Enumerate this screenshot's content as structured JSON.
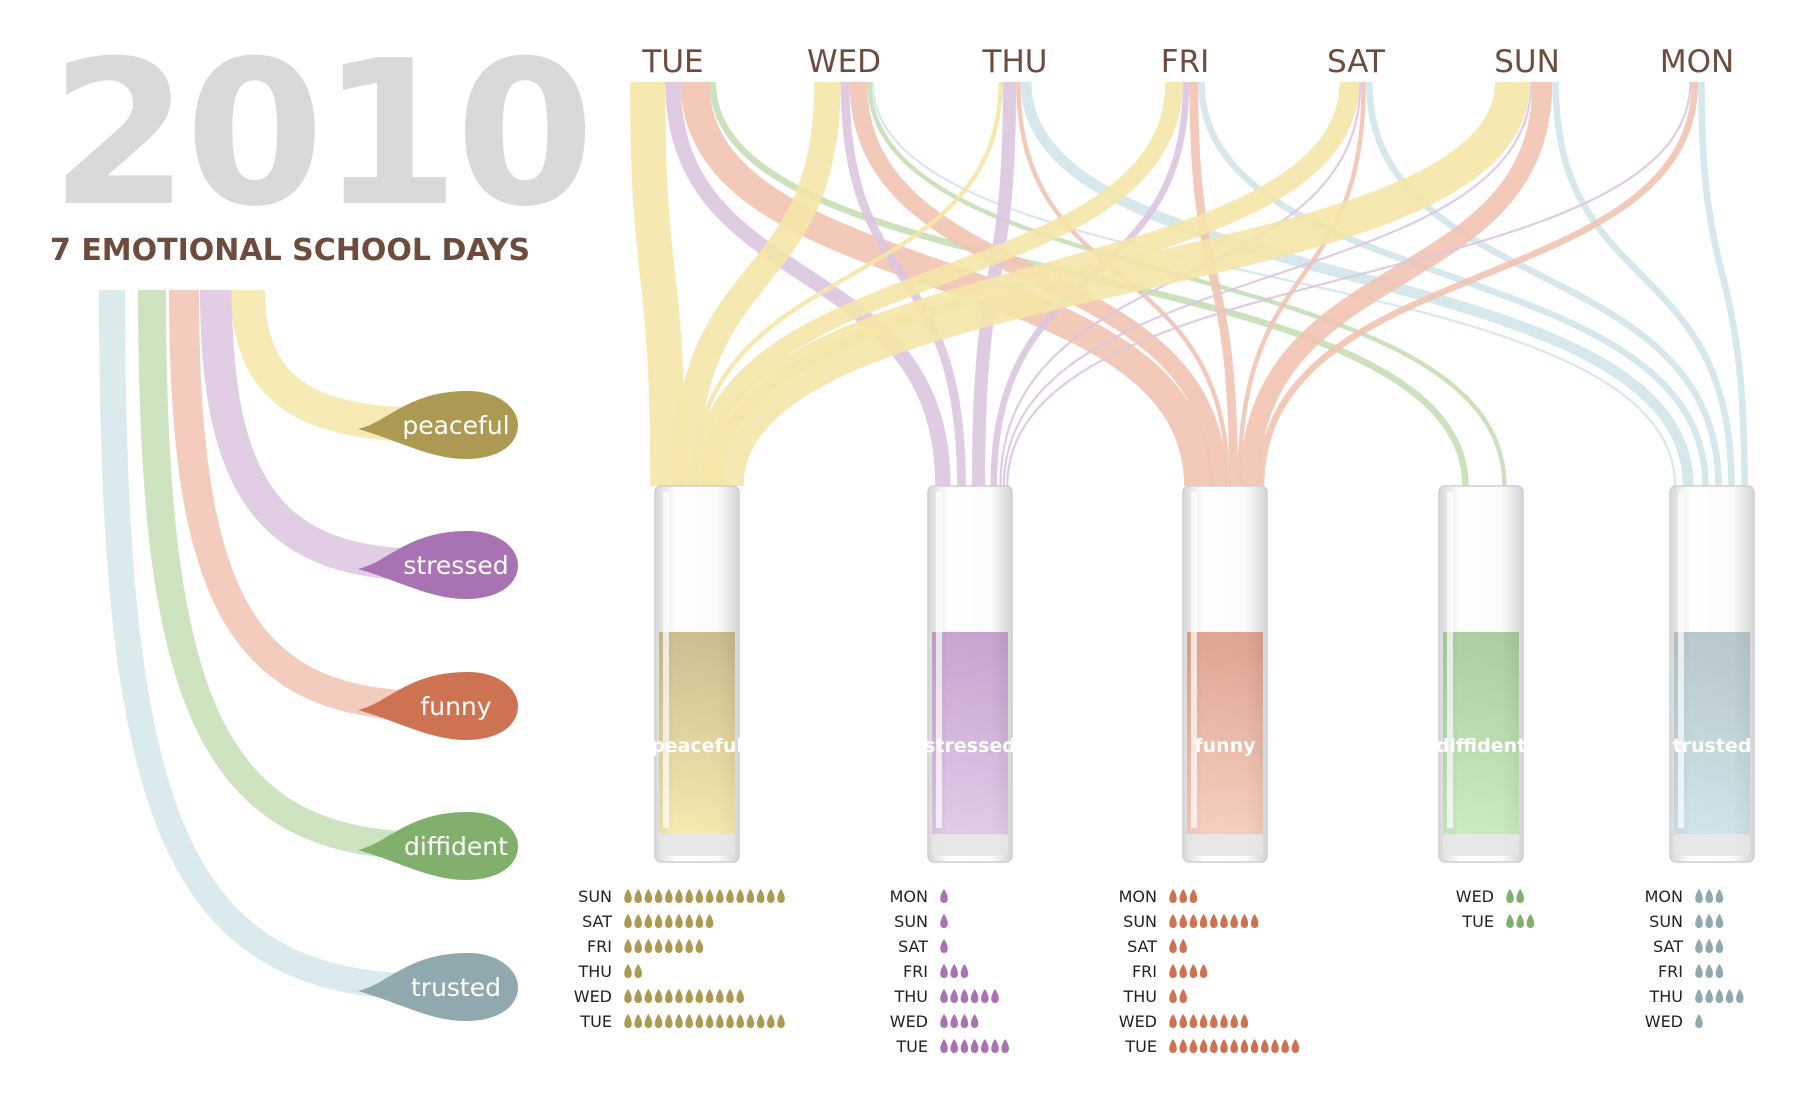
{
  "header": {
    "year": "2010",
    "subtitle": "7 EMOTIONAL SCHOOL DAYS"
  },
  "days": [
    "TUE",
    "WED",
    "THU",
    "FRI",
    "SAT",
    "SUN",
    "MON"
  ],
  "emotions": [
    {
      "key": "peaceful",
      "label": "peaceful",
      "glass_label": "peaceful",
      "color": "#ad9a52",
      "light": "#f1e08a",
      "ribbon": "#f5e6a8"
    },
    {
      "key": "stressed",
      "label": "stressed",
      "glass_label": "stressed",
      "color": "#a872b3",
      "light": "#d2b3dd",
      "ribbon": "#dcc6e0"
    },
    {
      "key": "funny",
      "label": "funny",
      "glass_label": "funny",
      "color": "#cd7352",
      "light": "#f2b9a3",
      "ribbon": "#f2c3b3"
    },
    {
      "key": "diffident",
      "label": "diffident",
      "glass_label": "diffident",
      "color": "#80b06c",
      "light": "#b2e2a2",
      "ribbon": "#c5dfb6"
    },
    {
      "key": "trusted",
      "label": "trusted",
      "glass_label": "trusted",
      "color": "#90a9ae",
      "light": "#b9d8e0",
      "ribbon": "#d3e6ea"
    }
  ],
  "chart_data": {
    "type": "table",
    "counts": {
      "peaceful": [
        {
          "day": "SUN",
          "count": 16
        },
        {
          "day": "SAT",
          "count": 9
        },
        {
          "day": "FRI",
          "count": 8
        },
        {
          "day": "THU",
          "count": 2
        },
        {
          "day": "WED",
          "count": 12
        },
        {
          "day": "TUE",
          "count": 16
        }
      ],
      "stressed": [
        {
          "day": "MON",
          "count": 1
        },
        {
          "day": "SUN",
          "count": 1
        },
        {
          "day": "SAT",
          "count": 1
        },
        {
          "day": "FRI",
          "count": 3
        },
        {
          "day": "THU",
          "count": 6
        },
        {
          "day": "WED",
          "count": 4
        },
        {
          "day": "TUE",
          "count": 7
        }
      ],
      "funny": [
        {
          "day": "MON",
          "count": 3
        },
        {
          "day": "SUN",
          "count": 9
        },
        {
          "day": "SAT",
          "count": 2
        },
        {
          "day": "FRI",
          "count": 4
        },
        {
          "day": "THU",
          "count": 2
        },
        {
          "day": "WED",
          "count": 8
        },
        {
          "day": "TUE",
          "count": 13
        }
      ],
      "diffident": [
        {
          "day": "WED",
          "count": 2
        },
        {
          "day": "TUE",
          "count": 3
        }
      ],
      "trusted": [
        {
          "day": "MON",
          "count": 3
        },
        {
          "day": "SUN",
          "count": 3
        },
        {
          "day": "SAT",
          "count": 3
        },
        {
          "day": "FRI",
          "count": 3
        },
        {
          "day": "THU",
          "count": 5
        },
        {
          "day": "WED",
          "count": 1
        }
      ]
    }
  }
}
